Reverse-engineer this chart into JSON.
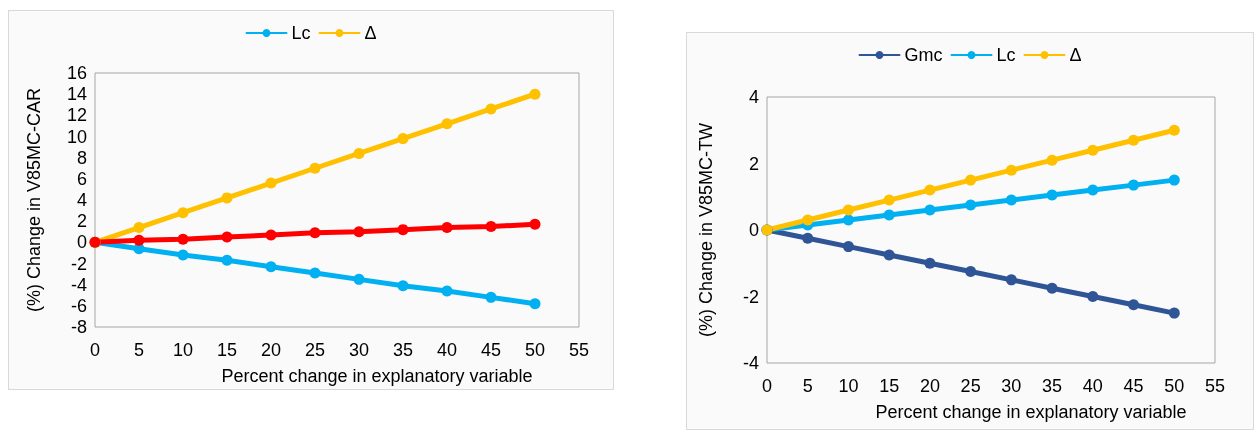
{
  "chart_data": [
    {
      "type": "line",
      "xlabel": "Percent change in explanatory variable",
      "ylabel": "(%) Change in V85MC-CAR",
      "x": [
        0,
        5,
        10,
        15,
        20,
        25,
        30,
        35,
        40,
        45,
        50
      ],
      "xlim": [
        0,
        55
      ],
      "xticks": [
        0,
        5,
        10,
        15,
        20,
        25,
        30,
        35,
        40,
        45,
        50,
        55
      ],
      "ylim": [
        -8,
        16
      ],
      "yticks": [
        -8,
        -6,
        -4,
        -2,
        0,
        2,
        4,
        6,
        8,
        10,
        12,
        14,
        16
      ],
      "grid": false,
      "legend": "top",
      "marker": "circle",
      "line_style": "solid",
      "series": [
        {
          "name": "Lc",
          "color": "#00b0f0",
          "values": [
            0,
            -0.6,
            -1.2,
            -1.7,
            -2.3,
            -2.9,
            -3.5,
            -4.1,
            -4.6,
            -5.2,
            -5.8
          ]
        },
        {
          "name": "Δ",
          "color": "#ffc000",
          "values": [
            0,
            1.4,
            2.8,
            4.2,
            5.6,
            7.0,
            8.4,
            9.8,
            11.2,
            12.6,
            14.0
          ]
        },
        {
          "color": "#ff0000",
          "values": [
            0,
            0.2,
            0.3,
            0.5,
            0.7,
            0.9,
            1.0,
            1.2,
            1.4,
            1.5,
            1.7
          ]
        }
      ]
    },
    {
      "type": "line",
      "xlabel": "Percent change in explanatory variable",
      "ylabel": "(%) Change in V85MC-TW",
      "x": [
        0,
        5,
        10,
        15,
        20,
        25,
        30,
        35,
        40,
        45,
        50
      ],
      "xlim": [
        0,
        55
      ],
      "xticks": [
        0,
        5,
        10,
        15,
        20,
        25,
        30,
        35,
        40,
        45,
        50,
        55
      ],
      "ylim": [
        -4,
        4
      ],
      "yticks": [
        -4,
        -2,
        0,
        2,
        4
      ],
      "grid": false,
      "legend": "top",
      "marker": "circle",
      "line_style": "solid",
      "series": [
        {
          "name": "Gmc",
          "color": "#2f5597",
          "values": [
            0,
            -0.25,
            -0.5,
            -0.75,
            -1.0,
            -1.25,
            -1.5,
            -1.75,
            -2.0,
            -2.25,
            -2.5
          ]
        },
        {
          "name": "Lc",
          "color": "#00b0f0",
          "values": [
            0,
            0.15,
            0.3,
            0.45,
            0.6,
            0.75,
            0.9,
            1.05,
            1.2,
            1.35,
            1.5
          ]
        },
        {
          "name": "Δ",
          "color": "#ffc000",
          "values": [
            0,
            0.3,
            0.6,
            0.9,
            1.2,
            1.5,
            1.8,
            2.1,
            2.4,
            2.7,
            3.0
          ]
        }
      ]
    }
  ]
}
